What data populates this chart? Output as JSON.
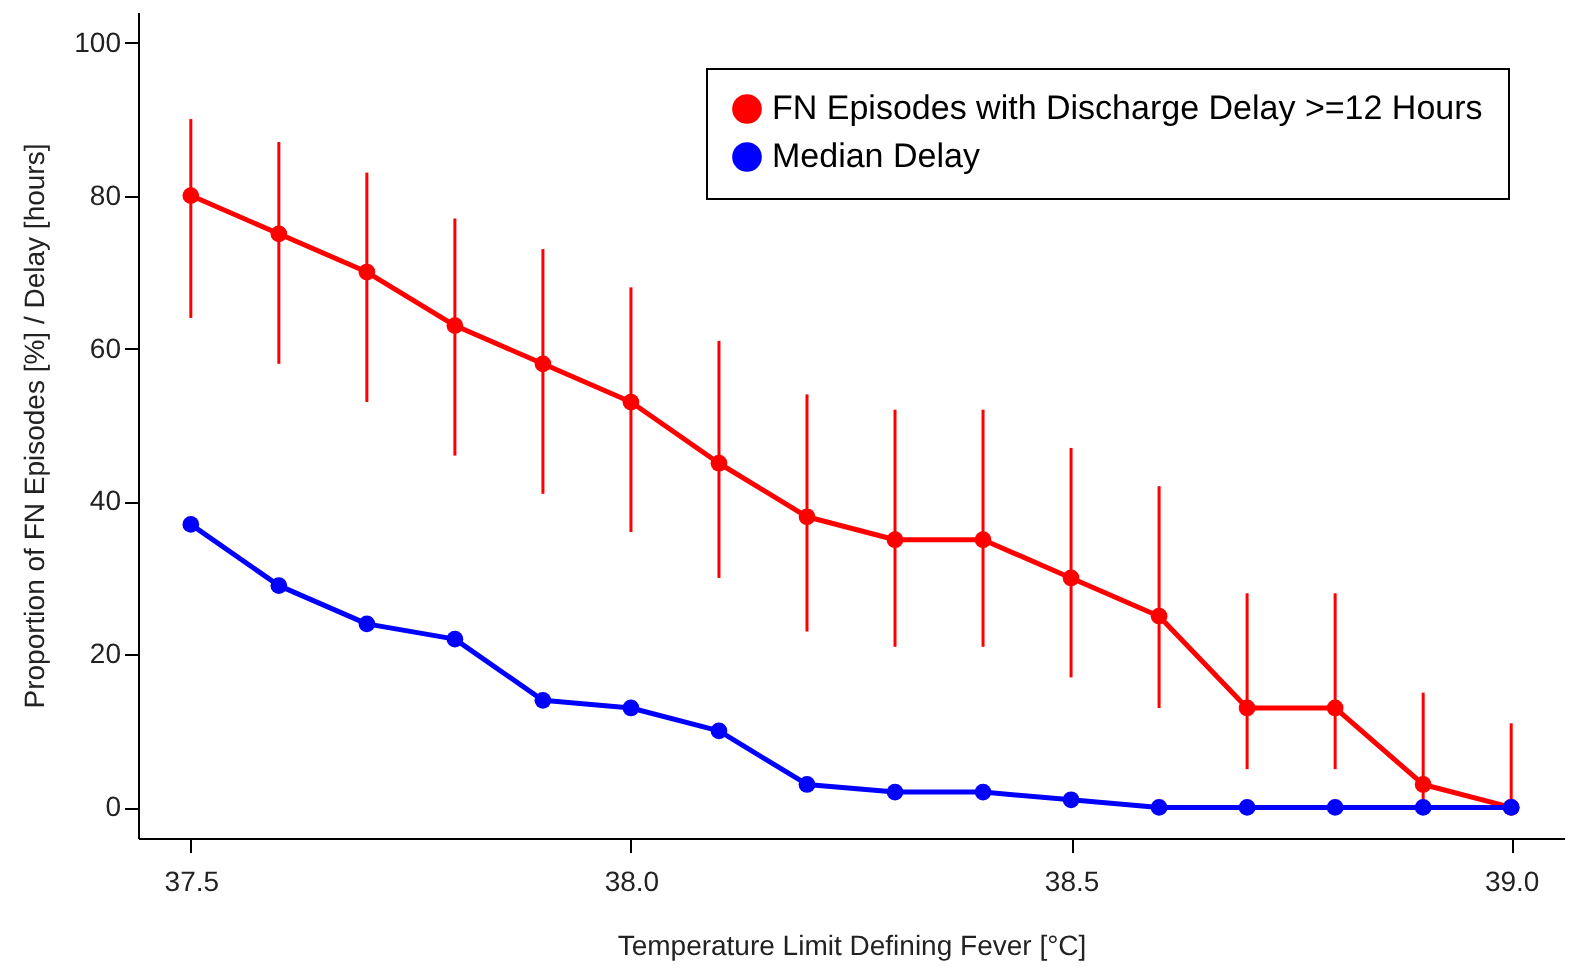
{
  "chart_data": {
    "type": "line",
    "xlabel": "Temperature Limit Defining Fever [°C]",
    "ylabel": "Proportion of FN Episodes [%]  /  Delay [hours]",
    "x": [
      37.5,
      37.6,
      37.7,
      37.8,
      37.9,
      38.0,
      38.1,
      38.2,
      38.3,
      38.4,
      38.5,
      38.6,
      38.7,
      38.8,
      38.9,
      39.0
    ],
    "series": [
      {
        "name": "FN Episodes with Discharge Delay >=12 Hours",
        "color": "#ff0000",
        "values": [
          80,
          75,
          70,
          63,
          58,
          53,
          45,
          38,
          35,
          35,
          30,
          25,
          13,
          13,
          3,
          0
        ],
        "errors": [
          [
            64,
            90
          ],
          [
            58,
            87
          ],
          [
            53,
            83
          ],
          [
            46,
            77
          ],
          [
            41,
            73
          ],
          [
            36,
            68
          ],
          [
            30,
            61
          ],
          [
            23,
            54
          ],
          [
            21,
            52
          ],
          [
            21,
            52
          ],
          [
            17,
            47
          ],
          [
            13,
            42
          ],
          [
            5,
            28
          ],
          [
            5,
            28
          ],
          [
            0,
            15
          ],
          [
            0,
            11
          ]
        ]
      },
      {
        "name": "Median Delay",
        "color": "#0000ff",
        "values": [
          37,
          29,
          24,
          22,
          14,
          13,
          10,
          3,
          2,
          2,
          1,
          0,
          0,
          0,
          0,
          0
        ]
      }
    ],
    "xlim": [
      37.44,
      39.06
    ],
    "xticks": [
      37.5,
      {
        "value": 38,
        "label": "38.0"
      },
      38.5,
      {
        "value": 39,
        "label": "39.0"
      }
    ],
    "ylim": [
      -4,
      104
    ],
    "yticks": [
      0,
      20,
      40,
      60,
      80,
      100
    ],
    "legend": "top right",
    "marker": "circle",
    "grid": false
  }
}
